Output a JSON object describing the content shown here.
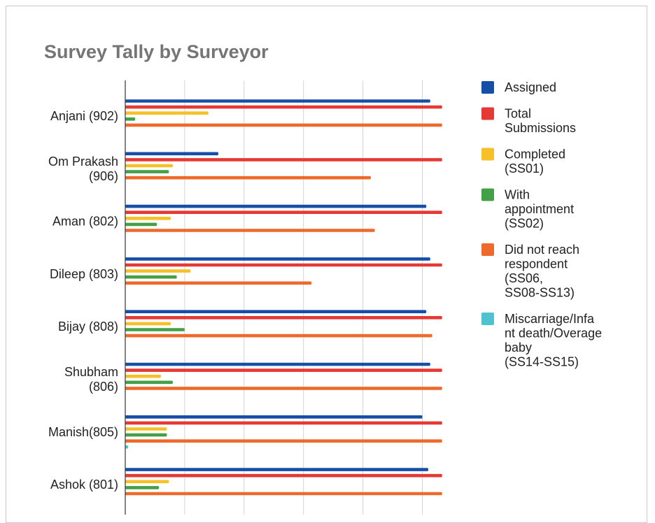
{
  "chart_data": {
    "type": "bar",
    "orientation": "horizontal",
    "title": "Survey Tally by Surveyor",
    "categories": [
      [
        "Anjani (902)"
      ],
      [
        "Om Prakash",
        "(906)"
      ],
      [
        "Aman (802)"
      ],
      [
        "Dileep (803)"
      ],
      [
        "Bijay (808)"
      ],
      [
        "Shubham",
        "(806)"
      ],
      [
        "Manish(805)"
      ],
      [
        "Ashok (801)"
      ]
    ],
    "xlim": [
      0,
      80
    ],
    "grid": true,
    "legend_position": "right",
    "series": [
      {
        "name": [
          "Assigned"
        ],
        "color": "#174ea6",
        "values": [
          77,
          23.5,
          76,
          77,
          76,
          77,
          75,
          76.5
        ]
      },
      {
        "name": [
          "Total",
          "Submissions"
        ],
        "color": "#e53935",
        "values": [
          80,
          80,
          80,
          80,
          80,
          80,
          80,
          80
        ]
      },
      {
        "name": [
          "Completed",
          "(SS01)"
        ],
        "color": "#f6c028",
        "values": [
          21,
          12,
          11.5,
          16.5,
          11.5,
          9,
          10.5,
          11
        ]
      },
      {
        "name": [
          "With",
          "appointment",
          "(SS02)"
        ],
        "color": "#43a047",
        "values": [
          2.5,
          11,
          8,
          13,
          15,
          12,
          10.5,
          8.5
        ]
      },
      {
        "name": [
          "Did not reach",
          "respondent",
          "(SS06,",
          "SS08-SS13)"
        ],
        "color": "#ee6a2c",
        "values": [
          80,
          62,
          63,
          47,
          77.5,
          80,
          80,
          80
        ]
      },
      {
        "name": [
          "Miscarriage/Infa",
          "nt death/Overage",
          "baby",
          "(SS14-SS15)"
        ],
        "color": "#4ec3cf",
        "values": [
          0,
          0,
          0,
          0,
          0,
          0,
          0.7,
          0
        ]
      }
    ]
  }
}
